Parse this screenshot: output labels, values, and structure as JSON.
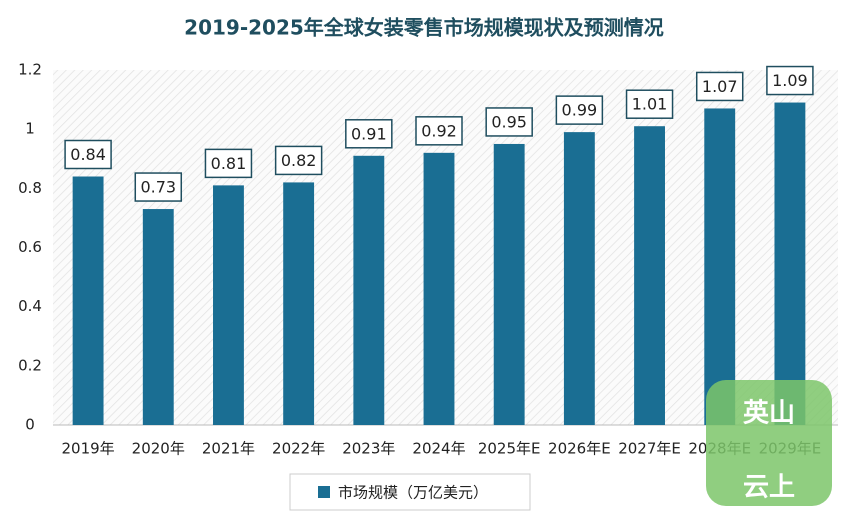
{
  "chart_data": {
    "type": "bar",
    "title": "2019-2025年全球女装零售市场规模现状及预测情况",
    "categories": [
      "2019年",
      "2020年",
      "2021年",
      "2022年",
      "2023年",
      "2024年",
      "2025年E",
      "2026年E",
      "2027年E",
      "2028年E",
      "2029年E"
    ],
    "series": [
      {
        "name": "市场规模（万亿美元）",
        "color": "#1a6e93",
        "values": [
          0.84,
          0.73,
          0.81,
          0.82,
          0.91,
          0.92,
          0.95,
          0.99,
          1.01,
          1.07,
          1.09
        ]
      }
    ],
    "ylim": [
      0,
      1.2
    ],
    "yticks": [
      0,
      0.2,
      0.4,
      0.6,
      0.8,
      1,
      1.2
    ],
    "grid": false,
    "legend": "bottom"
  },
  "watermark": [
    "英山",
    "云上"
  ]
}
